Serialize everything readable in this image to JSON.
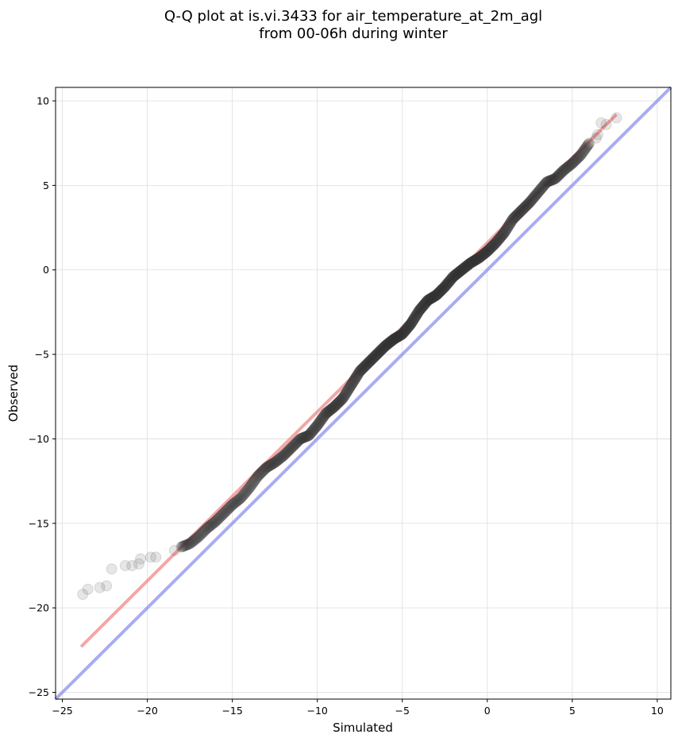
{
  "chart_data": {
    "type": "scatter",
    "title": "Q-Q plot at is.vi.3433 for air_temperature_at_2m_agl",
    "subtitle": "from 00-06h during winter",
    "xlabel": "Simulated",
    "ylabel": "Observed",
    "xlim": [
      -25.4,
      10.8
    ],
    "ylim": [
      -25.4,
      10.8
    ],
    "xticks": [
      -25,
      -20,
      -15,
      -10,
      -5,
      0,
      5,
      10
    ],
    "yticks": [
      -25,
      -20,
      -15,
      -10,
      -5,
      0,
      5,
      10
    ],
    "xtick_labels": [
      "−25",
      "−20",
      "−15",
      "−10",
      "−5",
      "0",
      "5",
      "10"
    ],
    "ytick_labels": [
      "−25",
      "−20",
      "−15",
      "−10",
      "−5",
      "0",
      "5",
      "10"
    ],
    "grid": true,
    "colors": {
      "points": "#333333",
      "fit_line": "#f08080",
      "identity_line": "#8888ee"
    },
    "fit_line": {
      "x": [
        -23.9,
        7.6
      ],
      "y": [
        -22.3,
        9.2
      ]
    },
    "identity_line": {
      "x": [
        -25.4,
        10.8
      ],
      "y": [
        -25.4,
        10.8
      ]
    },
    "quantile_curve": [
      [
        -23.8,
        -19.2
      ],
      [
        -23.5,
        -18.9
      ],
      [
        -22.8,
        -18.8
      ],
      [
        -22.4,
        -18.7
      ],
      [
        -22.1,
        -17.7
      ],
      [
        -21.3,
        -17.5
      ],
      [
        -20.9,
        -17.5
      ],
      [
        -20.5,
        -17.4
      ],
      [
        -20.4,
        -17.1
      ],
      [
        -19.8,
        -17.0
      ],
      [
        -19.5,
        -17.0
      ],
      [
        -18.4,
        -16.6
      ],
      [
        -18.0,
        -16.4
      ],
      [
        -17.5,
        -16.2
      ],
      [
        -17.0,
        -15.8
      ],
      [
        -16.5,
        -15.3
      ],
      [
        -16.0,
        -14.9
      ],
      [
        -15.5,
        -14.4
      ],
      [
        -15.0,
        -13.9
      ],
      [
        -14.5,
        -13.5
      ],
      [
        -14.0,
        -12.9
      ],
      [
        -13.5,
        -12.2
      ],
      [
        -13.0,
        -11.7
      ],
      [
        -12.5,
        -11.4
      ],
      [
        -12.0,
        -11.0
      ],
      [
        -11.5,
        -10.5
      ],
      [
        -11.0,
        -10.0
      ],
      [
        -10.5,
        -9.8
      ],
      [
        -10.0,
        -9.2
      ],
      [
        -9.5,
        -8.5
      ],
      [
        -9.0,
        -8.1
      ],
      [
        -8.5,
        -7.6
      ],
      [
        -8.0,
        -6.8
      ],
      [
        -7.5,
        -6.0
      ],
      [
        -7.0,
        -5.5
      ],
      [
        -6.5,
        -5.0
      ],
      [
        -6.0,
        -4.5
      ],
      [
        -5.5,
        -4.1
      ],
      [
        -5.0,
        -3.8
      ],
      [
        -4.5,
        -3.2
      ],
      [
        -4.0,
        -2.4
      ],
      [
        -3.5,
        -1.8
      ],
      [
        -3.0,
        -1.5
      ],
      [
        -2.5,
        -1.0
      ],
      [
        -2.0,
        -0.4
      ],
      [
        -1.5,
        0.0
      ],
      [
        -1.0,
        0.4
      ],
      [
        -0.5,
        0.7
      ],
      [
        0.0,
        1.1
      ],
      [
        0.5,
        1.6
      ],
      [
        1.0,
        2.2
      ],
      [
        1.5,
        3.0
      ],
      [
        2.0,
        3.5
      ],
      [
        2.5,
        4.0
      ],
      [
        3.0,
        4.6
      ],
      [
        3.5,
        5.2
      ],
      [
        4.0,
        5.4
      ],
      [
        4.5,
        5.9
      ],
      [
        5.0,
        6.3
      ],
      [
        5.5,
        6.8
      ],
      [
        6.0,
        7.5
      ],
      [
        6.4,
        7.8
      ],
      [
        6.5,
        8.0
      ],
      [
        6.7,
        8.7
      ],
      [
        7.0,
        8.6
      ],
      [
        7.6,
        9.0
      ]
    ]
  }
}
